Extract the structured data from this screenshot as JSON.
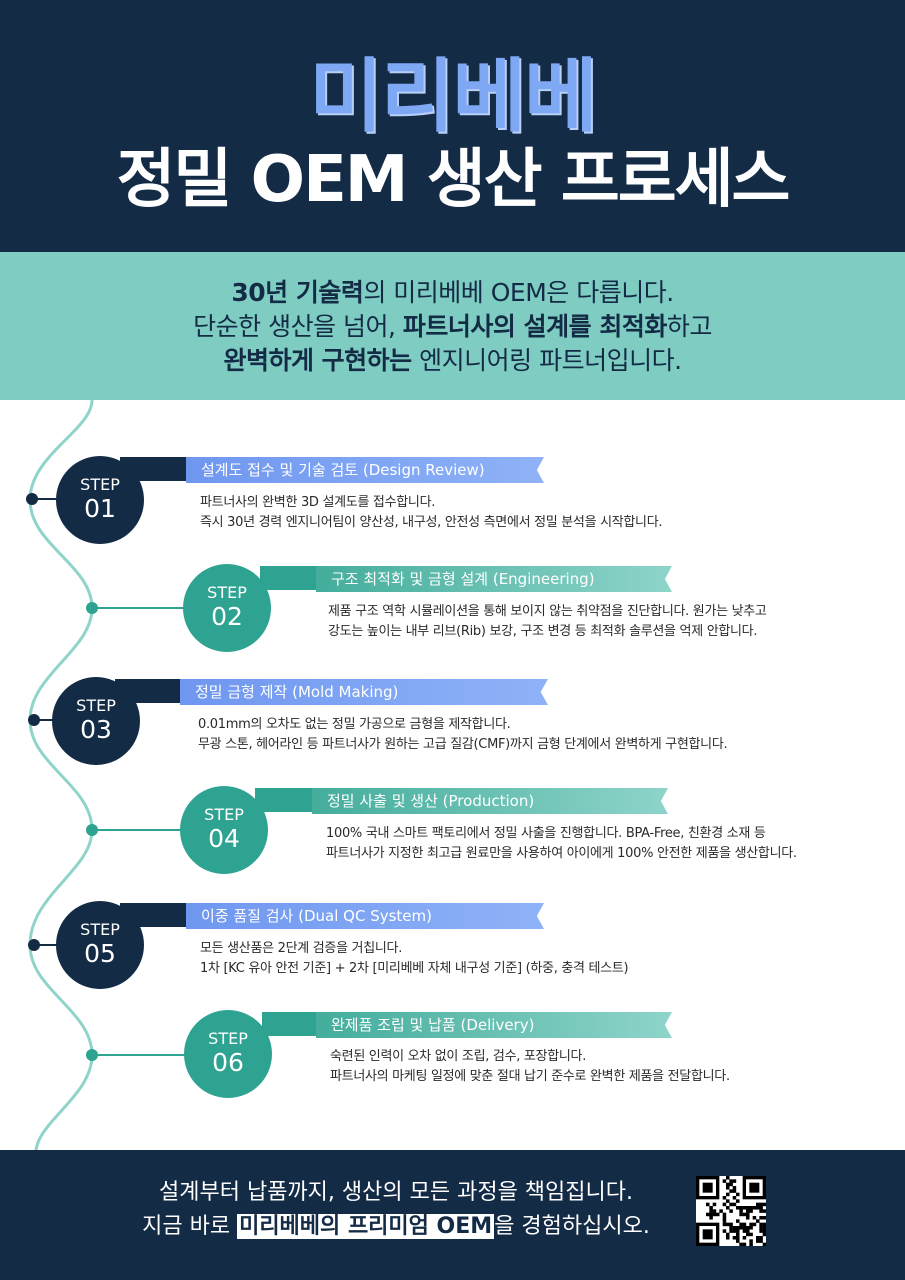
{
  "header": {
    "brand": "미리베베",
    "headline": "정밀 OEM 생산 프로세스"
  },
  "intro": {
    "line1_bold": "30년 기술력",
    "line1_rest": "의 미리베베 OEM은 다릅니다.",
    "line2_pre": "단순한 생산을 넘어, ",
    "line2_bold": "파트너사의 설계를 최적화",
    "line2_rest": "하고",
    "line3_bold": "완벽하게 구현하는",
    "line3_rest": " 엔지니어링 파트너입니다."
  },
  "steps": [
    {
      "label": "STEP",
      "num": "01",
      "title": "설계도 접수 및 기술 검토 (Design Review)",
      "desc1": "파트너사의 완벽한 3D 설계도를 접수합니다.",
      "desc2": "즉시 30년 경력 엔지니어팀이 양산성, 내구성, 안전성 측면에서 정밀 분석을 시작합니다."
    },
    {
      "label": "STEP",
      "num": "02",
      "title": "구조 최적화 및 금형 설계 (Engineering)",
      "desc1": "제품 구조 역학 시뮬레이션을 통해 보이지 않는 취약점을 진단합니다. 원가는 낮추고",
      "desc2": "강도는 높이는 내부 리브(Rib) 보강, 구조 변경 등 최적화 솔루션을 억제 안합니다."
    },
    {
      "label": "STEP",
      "num": "03",
      "title": "정밀 금형 제작 (Mold Making)",
      "desc1": "0.01mm의 오차도 없는 정밀 가공으로 금형을 제작합니다.",
      "desc2": "무광 스톤, 헤어라인 등 파트너사가 원하는 고급 질감(CMF)까지 금형 단계에서 완벽하게 구현합니다."
    },
    {
      "label": "STEP",
      "num": "04",
      "title": "정밀 사출 및 생산 (Production)",
      "desc1": "100% 국내 스마트 팩토리에서 정밀 사출을 진행합니다. BPA-Free, 친환경 소재 등",
      "desc2": "파트너사가 지정한 최고급 원료만을 사용하여 아이에게 100% 안전한 제품을 생산합니다."
    },
    {
      "label": "STEP",
      "num": "05",
      "title": "이중 품질 검사 (Dual QC System)",
      "desc1": "모든 생산품은 2단계 검증을 거칩니다.",
      "desc2": "1차 [KC 유아 안전 기준] + 2차 [미리베베 자체 내구성 기준] (하중, 충격 테스트)"
    },
    {
      "label": "STEP",
      "num": "06",
      "title": "완제품 조립 및 납품 (Delivery)",
      "desc1": "숙련된 인력이 오차 없이 조립, 검수, 포장합니다.",
      "desc2": "파트너사의 마케팅 일정에 맞춘 절대 납기 준수로 완벽한 제품을 전달합니다."
    }
  ],
  "footer": {
    "line1": "설계부터 납품까지, 생산의 모든 과정을 책임집니다.",
    "line2_pre": "지금 바로 ",
    "line2_highlight": "미리베베의 프리미엄 OEM",
    "line2_rest": "을 경험하십시오.",
    "qr_icon": "qr-code-icon"
  },
  "colors": {
    "navy": "#142b46",
    "teal": "#2fa391",
    "mint": "#7fcdc2",
    "blue": "#7ea8f4"
  }
}
